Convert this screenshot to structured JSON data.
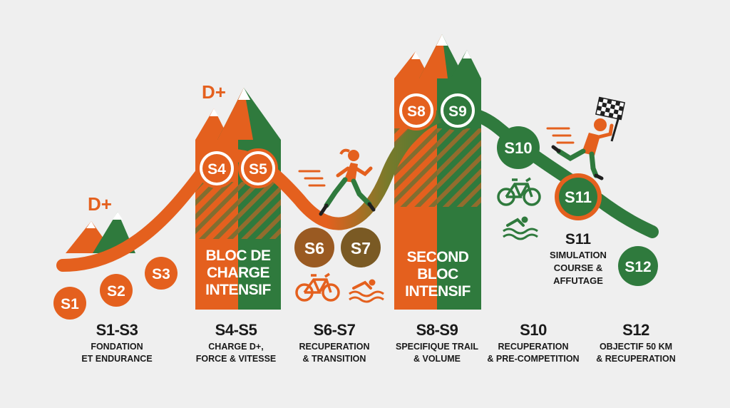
{
  "colors": {
    "orange": "#e4601e",
    "green": "#2f7a3d",
    "brown": "#9a5a22",
    "background": "#efefef",
    "text": "#1a1a1a"
  },
  "dplus_label": "D+",
  "weeks": {
    "s1": "S1",
    "s2": "S2",
    "s3": "S3",
    "s4": "S4",
    "s5": "S5",
    "s6": "S6",
    "s7": "S7",
    "s8": "S8",
    "s9": "S9",
    "s10": "S10",
    "s11": "S11",
    "s12": "S12"
  },
  "blocks": {
    "first": [
      "BLOC DE",
      "CHARGE",
      "INTENSIF"
    ],
    "second": [
      "SECOND",
      "BLOC",
      "INTENSIF"
    ]
  },
  "s11_note": {
    "title": "S11",
    "lines": [
      "SIMULATION",
      "COURSE &",
      "AFFUTAGE"
    ]
  },
  "phases": [
    {
      "title": "S1-S3",
      "lines": [
        "FONDATION",
        "ET ENDURANCE"
      ]
    },
    {
      "title": "S4-S5",
      "lines": [
        "CHARGE D+,",
        "FORCE & VITESSE"
      ]
    },
    {
      "title": "S6-S7",
      "lines": [
        "RECUPERATION",
        "& TRANSITION"
      ]
    },
    {
      "title": "S8-S9",
      "lines": [
        "SPECIFIQUE TRAIL",
        "& VOLUME"
      ]
    },
    {
      "title": "S10",
      "lines": [
        "RECUPERATION",
        "& PRE-COMPETITION"
      ]
    },
    {
      "title": "S12",
      "lines": [
        "OBJECTIF 50 KM",
        "& RECUPERATION"
      ]
    }
  ],
  "icons": [
    "mountain-icon",
    "runner-icon",
    "bicycle-icon",
    "swimmer-icon",
    "checkered-flag-icon"
  ]
}
